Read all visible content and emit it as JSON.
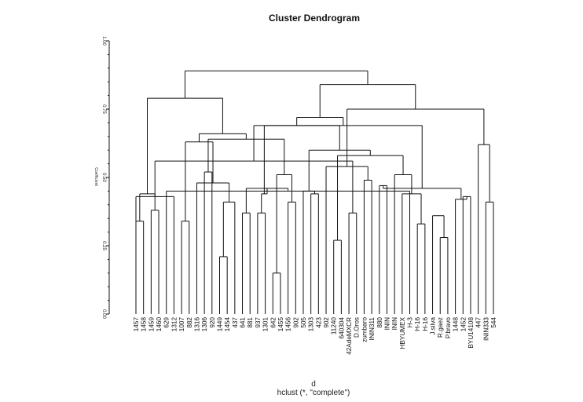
{
  "chart_data": {
    "type": "dendrogram",
    "title": "Cluster Dendrogram",
    "xlabel": "d",
    "sublabel": "hclust (*, \"complete\")",
    "ylabel": "Coefficient",
    "ylim": [
      0,
      1
    ],
    "yticks": [
      "0.00",
      "0.25",
      "0.50",
      "0.75",
      "1.00"
    ],
    "grid": false,
    "leaves": [
      "1457",
      "1458",
      "1459",
      "1460",
      "629",
      "1312",
      "1007",
      "882",
      "1316",
      "1306",
      "920",
      "1449",
      "1454",
      "437",
      "641",
      "881",
      "937",
      "1301",
      "642",
      "1455",
      "1456",
      "902",
      "505",
      "1303",
      "423",
      "902",
      "11240",
      "640304",
      "42AdeMXCR",
      "D.Oros",
      "zumbaro",
      "ININ311",
      "880",
      "ININ",
      "ININ",
      "HBYUMEX",
      "H-3",
      "H-16",
      "H-16",
      "J.silva",
      "R.gaez",
      "P.bravo",
      "1448",
      "1452",
      "BYU14108",
      "447",
      "ININ333",
      "544"
    ],
    "merges": [
      {
        "a": 1,
        "b": 2,
        "h": 0.34
      },
      {
        "a": 3,
        "b": 4,
        "h": 0.38
      },
      {
        "a": 7,
        "b": 8,
        "h": 0.34
      },
      {
        "a": 15,
        "b": 16,
        "h": 0.37
      },
      {
        "a": 17,
        "b": 18,
        "h": 0.37
      },
      {
        "a": 12,
        "b": 13,
        "h": 0.21
      },
      {
        "a": 19,
        "b": 20,
        "h": 0.15
      },
      {
        "a": 27,
        "b": 28,
        "h": 0.27
      },
      {
        "a": 29,
        "b": 30,
        "h": 0.37
      },
      {
        "a": 31,
        "b": 32,
        "h": 0.49
      },
      {
        "a": 33,
        "b": 34,
        "h": 0.47
      },
      {
        "a": 38,
        "b": 39,
        "h": 0.33
      },
      {
        "a": 41,
        "b": 42,
        "h": 0.28
      },
      {
        "a": 24,
        "b": 25,
        "h": 0.44
      },
      {
        "a": 37,
        "b": 5,
        "h": 0.45
      },
      {
        "a": -15,
        "b": -4,
        "h": 0.46
      },
      {
        "a": 44,
        "b": 45,
        "h": 0.43
      },
      {
        "a": 47,
        "b": 48,
        "h": 0.41
      },
      {
        "a": 14,
        "b": -6,
        "h": 0.41
      },
      {
        "a": 40,
        "b": -13,
        "h": 0.36
      },
      {
        "a": 21,
        "b": 22,
        "h": 0.41
      },
      {
        "a": 43,
        "b": -17,
        "h": 0.42
      },
      {
        "a": 6,
        "b": 1,
        "h": 0.43
      },
      {
        "a": 36,
        "b": -12,
        "h": 0.44
      },
      {
        "a": -1,
        "b": -2,
        "h": 0.44
      },
      {
        "a": -5,
        "b": -16,
        "h": 0.44
      },
      {
        "a": 23,
        "b": -14,
        "h": 0.45
      },
      {
        "a": -11,
        "b": -22,
        "h": 0.46
      },
      {
        "a": 9,
        "b": -19,
        "h": 0.48
      },
      {
        "a": -21,
        "b": -7,
        "h": 0.51
      },
      {
        "a": 35,
        "b": -24,
        "h": 0.51
      },
      {
        "a": 10,
        "b": 11,
        "h": 0.52
      },
      {
        "a": 26,
        "b": -10,
        "h": 0.54
      },
      {
        "a": -9,
        "b": -23,
        "h": 0.56
      },
      {
        "a": -8,
        "b": -31,
        "h": 0.58
      },
      {
        "a": -27,
        "b": -35,
        "h": 0.6
      },
      {
        "a": -18,
        "b": 46,
        "h": 0.62
      },
      {
        "a": -3,
        "b": -29,
        "h": 0.63
      },
      {
        "a": -32,
        "b": -30,
        "h": 0.64
      },
      {
        "a": -38,
        "b": -39,
        "h": 0.66
      },
      {
        "a": -26,
        "b": -28,
        "h": 0.69
      },
      {
        "a": -34,
        "b": -36,
        "h": 0.69
      },
      {
        "a": -41,
        "b": -42,
        "h": 0.72
      },
      {
        "a": -33,
        "b": -37,
        "h": 0.75
      },
      {
        "a": -25,
        "b": -40,
        "h": 0.79
      },
      {
        "a": -43,
        "b": -44,
        "h": 0.84
      },
      {
        "a": -45,
        "b": -46,
        "h": 0.89
      }
    ]
  }
}
